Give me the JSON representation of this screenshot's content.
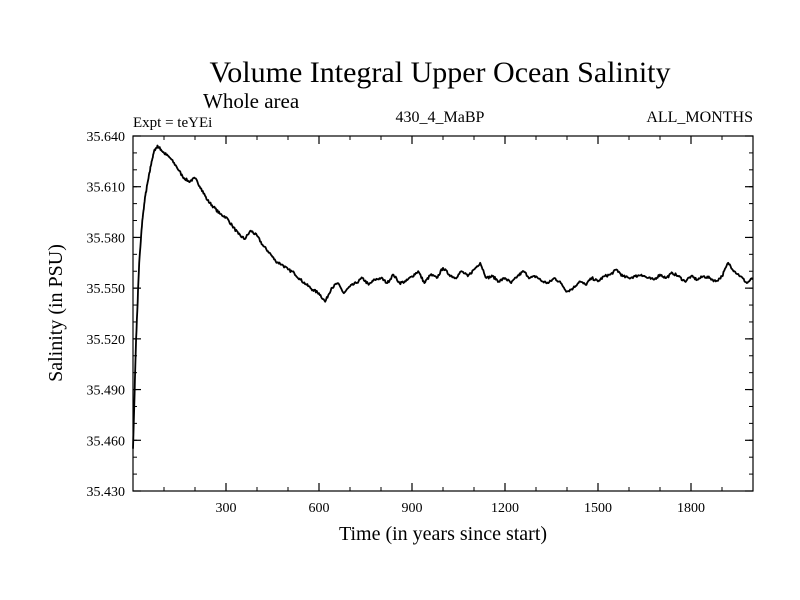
{
  "chart_data": {
    "type": "line",
    "title": "Volume Integral Upper Ocean Salinity",
    "subtitle": "Whole area",
    "expt_label": "Expt = teYEi",
    "center_label": "430_4_MaBP",
    "right_label": "ALL_MONTHS",
    "xlabel": "Time (in years since start)",
    "ylabel": "Salinity (in PSU)",
    "xlim": [
      0,
      2000
    ],
    "ylim": [
      35.43,
      35.64
    ],
    "x_ticks": [
      300,
      600,
      900,
      1200,
      1500,
      1800
    ],
    "x_tick_labels": [
      "300",
      "600",
      "900",
      "1200",
      "1500",
      "1800"
    ],
    "y_ticks": [
      35.43,
      35.46,
      35.49,
      35.52,
      35.55,
      35.58,
      35.61,
      35.64
    ],
    "y_tick_labels": [
      "35.430",
      "35.460",
      "35.490",
      "35.520",
      "35.550",
      "35.580",
      "35.610",
      "35.640"
    ],
    "series": [
      {
        "name": "Salinity",
        "color": "#000000",
        "x": [
          0,
          10,
          20,
          30,
          40,
          50,
          60,
          70,
          80,
          90,
          100,
          120,
          140,
          160,
          180,
          200,
          220,
          240,
          260,
          280,
          300,
          320,
          340,
          360,
          380,
          400,
          420,
          440,
          460,
          480,
          500,
          520,
          540,
          560,
          580,
          600,
          620,
          640,
          660,
          680,
          700,
          720,
          740,
          760,
          780,
          800,
          820,
          840,
          860,
          880,
          900,
          920,
          940,
          960,
          980,
          1000,
          1020,
          1040,
          1060,
          1080,
          1100,
          1120,
          1140,
          1160,
          1180,
          1200,
          1220,
          1240,
          1260,
          1280,
          1300,
          1320,
          1340,
          1360,
          1380,
          1400,
          1420,
          1440,
          1460,
          1480,
          1500,
          1520,
          1540,
          1560,
          1580,
          1600,
          1620,
          1640,
          1660,
          1680,
          1700,
          1720,
          1740,
          1760,
          1780,
          1800,
          1820,
          1840,
          1860,
          1880,
          1900,
          1920,
          1940,
          1960,
          1980,
          2000
        ],
        "values": [
          35.455,
          35.52,
          35.565,
          35.59,
          35.605,
          35.615,
          35.625,
          35.632,
          35.634,
          35.632,
          35.63,
          35.627,
          35.622,
          35.616,
          35.613,
          35.615,
          35.609,
          35.602,
          35.598,
          35.594,
          35.592,
          35.587,
          35.582,
          35.579,
          35.584,
          35.581,
          35.575,
          35.571,
          35.566,
          35.564,
          35.561,
          35.559,
          35.555,
          35.552,
          35.549,
          35.547,
          35.542,
          35.55,
          35.553,
          35.547,
          35.551,
          35.553,
          35.556,
          35.552,
          35.555,
          35.556,
          35.553,
          35.558,
          35.553,
          35.554,
          35.557,
          35.56,
          35.553,
          35.558,
          35.556,
          35.562,
          35.558,
          35.556,
          35.56,
          35.557,
          35.561,
          35.565,
          35.556,
          35.557,
          35.554,
          35.556,
          35.553,
          35.557,
          35.56,
          35.556,
          35.557,
          35.554,
          35.553,
          35.556,
          35.553,
          35.548,
          35.55,
          35.554,
          35.552,
          35.556,
          35.554,
          35.557,
          35.558,
          35.561,
          35.557,
          35.556,
          35.557,
          35.558,
          35.556,
          35.555,
          35.558,
          35.556,
          35.559,
          35.557,
          35.554,
          35.557,
          35.555,
          35.557,
          35.556,
          35.554,
          35.557,
          35.565,
          35.56,
          35.557,
          35.553,
          35.556
        ]
      }
    ]
  }
}
